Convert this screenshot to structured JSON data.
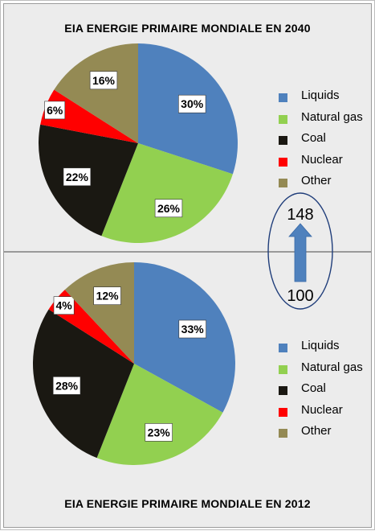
{
  "chart_data": [
    {
      "type": "pie",
      "title": "EIA ENERGIE PRIMAIRE MONDIALE EN 2040",
      "categories": [
        "Liquids",
        "Natural gas",
        "Coal",
        "Nuclear",
        "Other"
      ],
      "values": [
        30,
        26,
        22,
        6,
        16
      ],
      "labels": [
        "30%",
        "26%",
        "22%",
        "6%",
        "16%"
      ],
      "colors": [
        "#4f81bd",
        "#92d050",
        "#1a1812",
        "#ff0000",
        "#948a54"
      ],
      "legend": "right"
    },
    {
      "type": "pie",
      "title": "EIA ENERGIE PRIMAIRE MONDIALE EN 2012",
      "categories": [
        "Liquids",
        "Natural gas",
        "Coal",
        "Nuclear",
        "Other"
      ],
      "values": [
        33,
        23,
        28,
        4,
        12
      ],
      "labels": [
        "33%",
        "23%",
        "28%",
        "4%",
        "12%"
      ],
      "colors": [
        "#4f81bd",
        "#92d050",
        "#1a1812",
        "#ff0000",
        "#948a54"
      ],
      "legend": "right"
    }
  ],
  "growth": {
    "from_value": "100",
    "to_value": "148",
    "arrow_color": "#4f81bd",
    "ellipse_color": "#1f3d7a"
  }
}
